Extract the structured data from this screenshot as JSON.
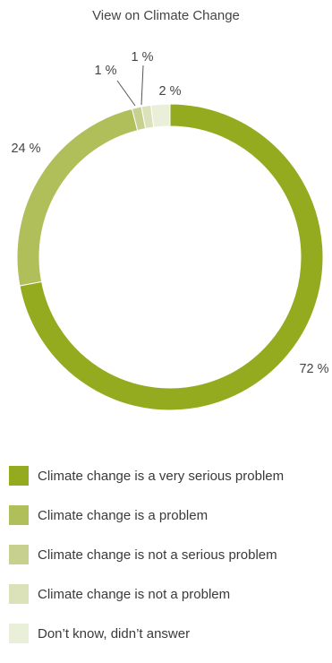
{
  "chart_data": {
    "type": "pie",
    "title": "View on Climate Change",
    "categories": [
      "Climate change is a very serious problem",
      "Climate change is a problem",
      "Climate change is not a serious problem",
      "Climate change is not a problem",
      "Don’t know, didn’t answer"
    ],
    "values": [
      72,
      24,
      1,
      1,
      2
    ],
    "value_labels": [
      "72 %",
      "24 %",
      "1 %",
      "1 %",
      "2 %"
    ],
    "colors": [
      "#94aa1f",
      "#b1bf5a",
      "#c8d08f",
      "#dbe2b9",
      "#eaefd9"
    ],
    "donut": true,
    "legend_position": "bottom"
  }
}
